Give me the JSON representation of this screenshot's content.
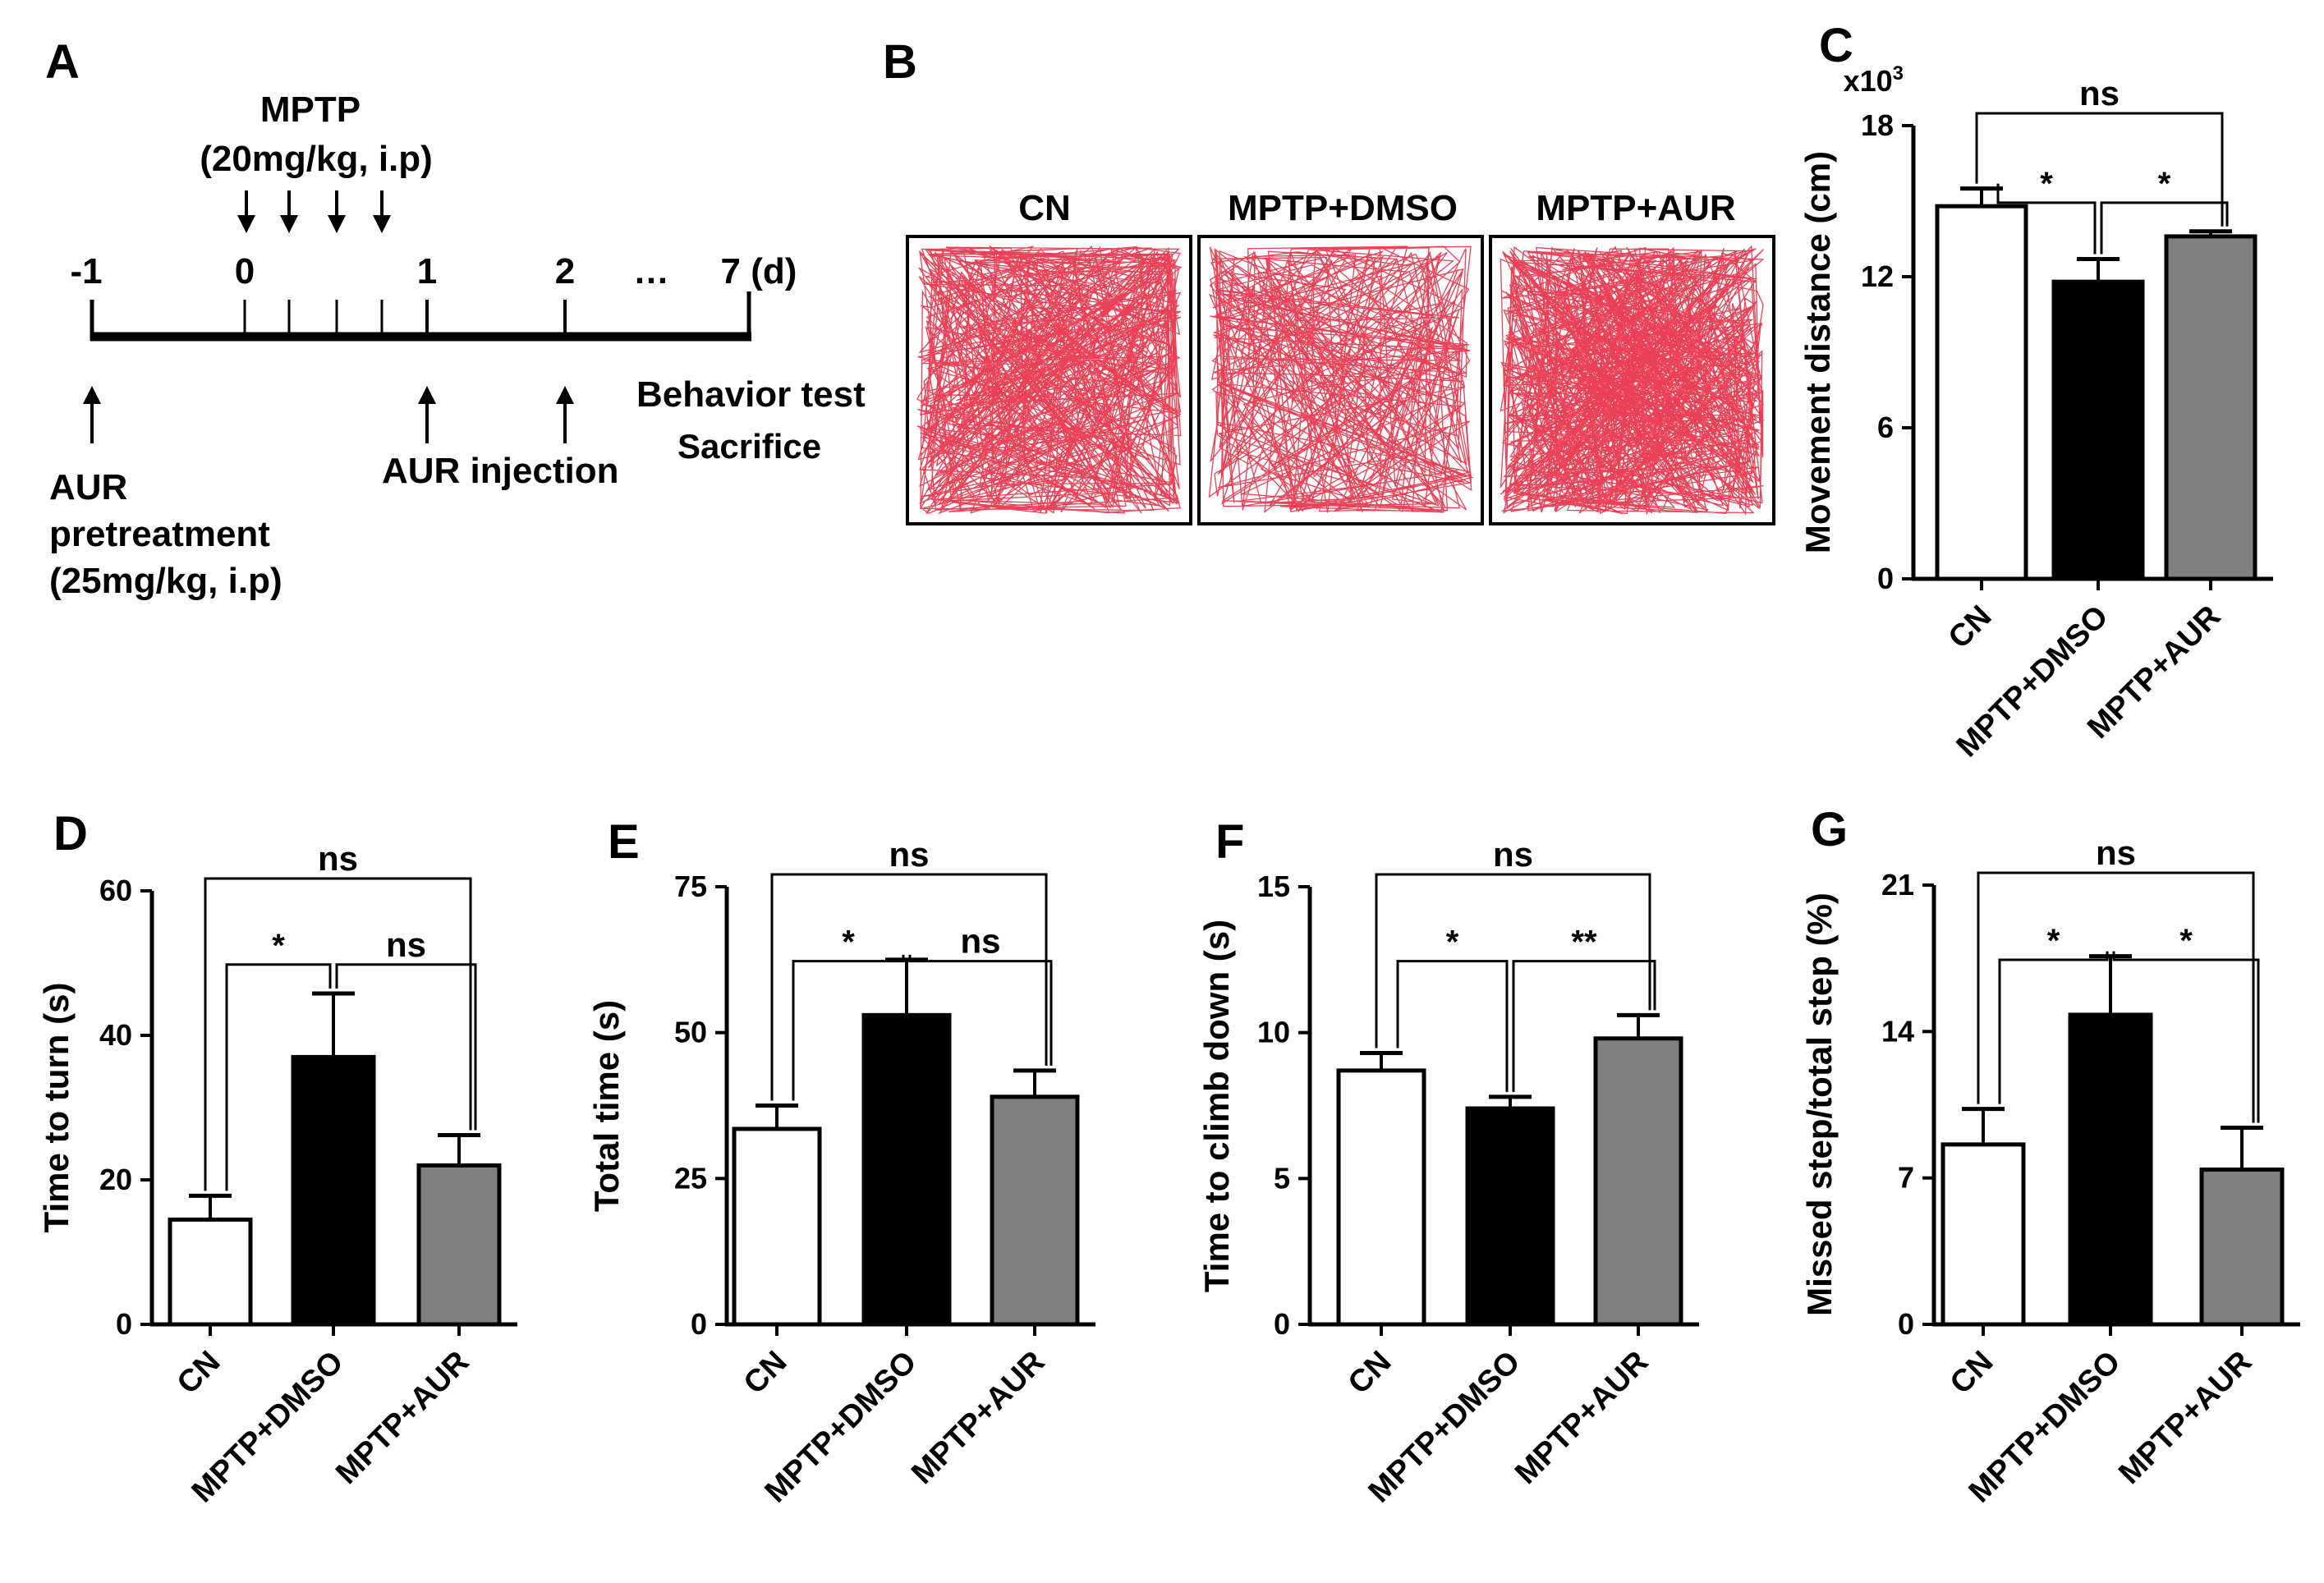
{
  "panel_a": {
    "letter": "A",
    "mptp_title": "MPTP",
    "mptp_dose": "(20mg/kg, i.p)",
    "days": [
      "-1",
      "0",
      "1",
      "2",
      "…",
      "7 (d)"
    ],
    "aur_pre_line1": "AUR",
    "aur_pre_line2": "pretreatment",
    "aur_pre_line3": "(25mg/kg, i.p)",
    "aur_injection": "AUR injection",
    "behavior_test": "Behavior test",
    "sacrifice": "Sacrifice"
  },
  "panel_b": {
    "letter": "B",
    "groups": [
      "CN",
      "MPTP+DMSO",
      "MPTP+AUR"
    ],
    "track_color": "#e8203a"
  },
  "colors": {
    "cn": "#ffffff",
    "dmso": "#000000",
    "aur": "#808080"
  },
  "chart_data": [
    {
      "panel": "C",
      "type": "bar",
      "categories": [
        "CN",
        "MPTP+DMSO",
        "MPTP+AUR"
      ],
      "values": [
        14.8,
        11.8,
        13.6
      ],
      "errors": [
        0.7,
        0.9,
        0.2
      ],
      "ylabel": "Movement distance (cm)",
      "multiplier_label": "x10",
      "multiplier_exp": "3",
      "ylim": [
        0,
        18
      ],
      "yticks": [
        "0",
        "6",
        "12",
        "18"
      ],
      "comparisons": [
        {
          "from": 0,
          "to": 1,
          "label": "*"
        },
        {
          "from": 1,
          "to": 2,
          "label": "*"
        },
        {
          "from": 0,
          "to": 2,
          "label": "ns"
        }
      ]
    },
    {
      "panel": "D",
      "type": "bar",
      "categories": [
        "CN",
        "MPTP+DMSO",
        "MPTP+AUR"
      ],
      "values": [
        14.5,
        37,
        22
      ],
      "errors": [
        3.3,
        8.8,
        4.2
      ],
      "ylabel": "Time to turn (s)",
      "ylim": [
        0,
        60
      ],
      "yticks": [
        "0",
        "20",
        "40",
        "60"
      ],
      "comparisons": [
        {
          "from": 0,
          "to": 1,
          "label": "*"
        },
        {
          "from": 1,
          "to": 2,
          "label": "ns"
        },
        {
          "from": 0,
          "to": 2,
          "label": "ns"
        }
      ]
    },
    {
      "panel": "E",
      "type": "bar",
      "categories": [
        "CN",
        "MPTP+DMSO",
        "MPTP+AUR"
      ],
      "values": [
        33.5,
        53,
        39
      ],
      "errors": [
        4,
        9.5,
        4.5
      ],
      "ylabel": "Total time (s)",
      "ylim": [
        0,
        75
      ],
      "yticks": [
        "0",
        "25",
        "50",
        "75"
      ],
      "comparisons": [
        {
          "from": 0,
          "to": 1,
          "label": "*"
        },
        {
          "from": 1,
          "to": 2,
          "label": "ns"
        },
        {
          "from": 0,
          "to": 2,
          "label": "ns"
        }
      ]
    },
    {
      "panel": "F",
      "type": "bar",
      "categories": [
        "CN",
        "MPTP+DMSO",
        "MPTP+AUR"
      ],
      "values": [
        8.7,
        7.4,
        9.8
      ],
      "errors": [
        0.6,
        0.4,
        0.8
      ],
      "ylabel": "Time to climb down (s)",
      "ylim": [
        0,
        15
      ],
      "yticks": [
        "0",
        "5",
        "10",
        "15"
      ],
      "comparisons": [
        {
          "from": 0,
          "to": 1,
          "label": "*"
        },
        {
          "from": 1,
          "to": 2,
          "label": "**"
        },
        {
          "from": 0,
          "to": 2,
          "label": "ns"
        }
      ]
    },
    {
      "panel": "G",
      "type": "bar",
      "categories": [
        "CN",
        "MPTP+DMSO",
        "MPTP+AUR"
      ],
      "values": [
        8.6,
        14.8,
        7.4
      ],
      "errors": [
        1.7,
        2.8,
        2.0
      ],
      "ylabel": "Missed step/total step (%)",
      "ylim": [
        0,
        21
      ],
      "yticks": [
        "0",
        "7",
        "14",
        "21"
      ],
      "comparisons": [
        {
          "from": 0,
          "to": 1,
          "label": "*"
        },
        {
          "from": 1,
          "to": 2,
          "label": "*"
        },
        {
          "from": 0,
          "to": 2,
          "label": "ns"
        }
      ]
    }
  ]
}
